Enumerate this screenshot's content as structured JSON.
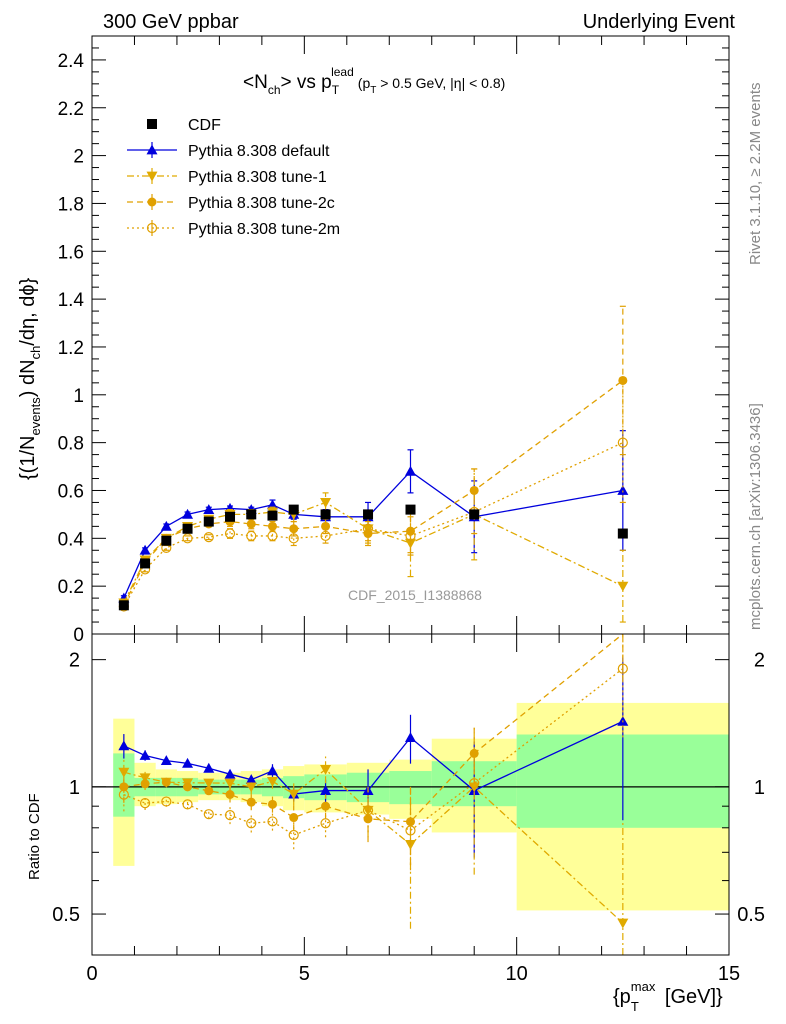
{
  "header": {
    "left": "300 GeV ppbar",
    "right": "Underlying Event"
  },
  "side_labels": {
    "rivet": "Rivet 3.1.10, ≥ 2.2M events",
    "mcplots": "mcplots.cern.ch [arXiv:1306.3436]"
  },
  "watermark": "CDF_2015_I1388868",
  "ratio_ylabel": "Ratio to CDF",
  "chart_data": {
    "type": "scatter",
    "title": "<Nch> vs pT lead (pT > 0.5 GeV, |η| < 0.8)",
    "xlabel": "{pT max [GeV]}",
    "ylabel": "{(1/N events) dN ch /dη, dϕ}",
    "xlim": [
      0,
      15
    ],
    "ylim": [
      0,
      2.5
    ],
    "ratio_ylim": [
      0.4,
      2.3
    ],
    "legend_position": "top-left",
    "x": [
      0.75,
      1.25,
      1.75,
      2.25,
      2.75,
      3.25,
      3.75,
      4.25,
      4.75,
      5.5,
      6.5,
      7.5,
      9.0,
      12.5
    ],
    "bin_edges": [
      0.5,
      1.0,
      1.5,
      2.0,
      2.5,
      3.0,
      3.5,
      4.0,
      4.5,
      5.0,
      6.0,
      7.0,
      8.0,
      10.0,
      15.0
    ],
    "series": [
      {
        "name": "CDF",
        "color": "#000000",
        "marker": "square",
        "line": "none",
        "values": [
          0.12,
          0.295,
          0.39,
          0.44,
          0.47,
          0.49,
          0.5,
          0.495,
          0.52,
          0.5,
          0.5,
          0.52,
          0.5,
          0.42
        ]
      },
      {
        "name": "Pythia 8.308 default",
        "color": "#0000dd",
        "marker": "triangle-up",
        "line": "solid",
        "values": [
          0.15,
          0.35,
          0.45,
          0.5,
          0.52,
          0.525,
          0.52,
          0.54,
          0.5,
          0.49,
          0.49,
          0.68,
          0.49,
          0.6
        ],
        "errors": [
          0.01,
          0.01,
          0.01,
          0.01,
          0.01,
          0.01,
          0.01,
          0.02,
          0.02,
          0.03,
          0.06,
          0.09,
          0.15,
          0.25
        ]
      },
      {
        "name": "Pythia 8.308 tune-1",
        "color": "#e0aa00",
        "marker": "triangle-down",
        "line": "dash-dot",
        "values": [
          0.13,
          0.31,
          0.4,
          0.45,
          0.48,
          0.5,
          0.5,
          0.51,
          0.5,
          0.55,
          0.44,
          0.38,
          0.5,
          0.2
        ],
        "errors": [
          0.01,
          0.01,
          0.01,
          0.01,
          0.01,
          0.02,
          0.02,
          0.02,
          0.03,
          0.04,
          0.06,
          0.14,
          0.19,
          0.15
        ]
      },
      {
        "name": "Pythia 8.308 tune-2c",
        "color": "#e0a000",
        "marker": "circle",
        "line": "dashed",
        "values": [
          0.12,
          0.3,
          0.4,
          0.44,
          0.46,
          0.47,
          0.46,
          0.45,
          0.44,
          0.45,
          0.42,
          0.43,
          0.6,
          1.06
        ],
        "errors": [
          0.01,
          0.01,
          0.01,
          0.01,
          0.01,
          0.02,
          0.02,
          0.02,
          0.03,
          0.03,
          0.05,
          0.09,
          0.09,
          0.31
        ]
      },
      {
        "name": "Pythia 8.308 tune-2m",
        "color": "#e0a000",
        "marker": "open-circle",
        "line": "dotted",
        "values": [
          0.115,
          0.27,
          0.36,
          0.4,
          0.405,
          0.42,
          0.41,
          0.41,
          0.4,
          0.41,
          0.44,
          0.41,
          0.51,
          0.8
        ],
        "errors": [
          0.01,
          0.01,
          0.01,
          0.01,
          0.01,
          0.02,
          0.02,
          0.02,
          0.03,
          0.03,
          0.05,
          0.08,
          0.09,
          0.25
        ]
      }
    ],
    "ratio_band_inner": [
      [
        0.85,
        1.2
      ],
      [
        0.95,
        1.05
      ],
      [
        0.95,
        1.05
      ],
      [
        0.95,
        1.05
      ],
      [
        0.96,
        1.04
      ],
      [
        0.96,
        1.04
      ],
      [
        0.96,
        1.04
      ],
      [
        0.95,
        1.05
      ],
      [
        0.94,
        1.06
      ],
      [
        0.93,
        1.07
      ],
      [
        0.92,
        1.08
      ],
      [
        0.91,
        1.09
      ],
      [
        0.9,
        1.15
      ],
      [
        0.8,
        1.33
      ]
    ],
    "ratio_band_outer": [
      [
        0.65,
        1.45
      ],
      [
        0.9,
        1.14
      ],
      [
        0.91,
        1.1
      ],
      [
        0.92,
        1.09
      ],
      [
        0.93,
        1.08
      ],
      [
        0.93,
        1.08
      ],
      [
        0.92,
        1.09
      ],
      [
        0.9,
        1.1
      ],
      [
        0.88,
        1.12
      ],
      [
        0.87,
        1.13
      ],
      [
        0.86,
        1.14
      ],
      [
        0.84,
        1.16
      ],
      [
        0.78,
        1.3
      ],
      [
        0.51,
        1.58
      ]
    ],
    "x_ticks": [
      "0",
      "5",
      "10",
      "15"
    ],
    "y_ticks": [
      "0",
      "0.2",
      "0.4",
      "0.6",
      "0.8",
      "1",
      "1.2",
      "1.4",
      "1.6",
      "1.8",
      "2",
      "2.2",
      "2.4"
    ],
    "ratio_ticks": [
      "0.5",
      "1",
      "2"
    ]
  }
}
